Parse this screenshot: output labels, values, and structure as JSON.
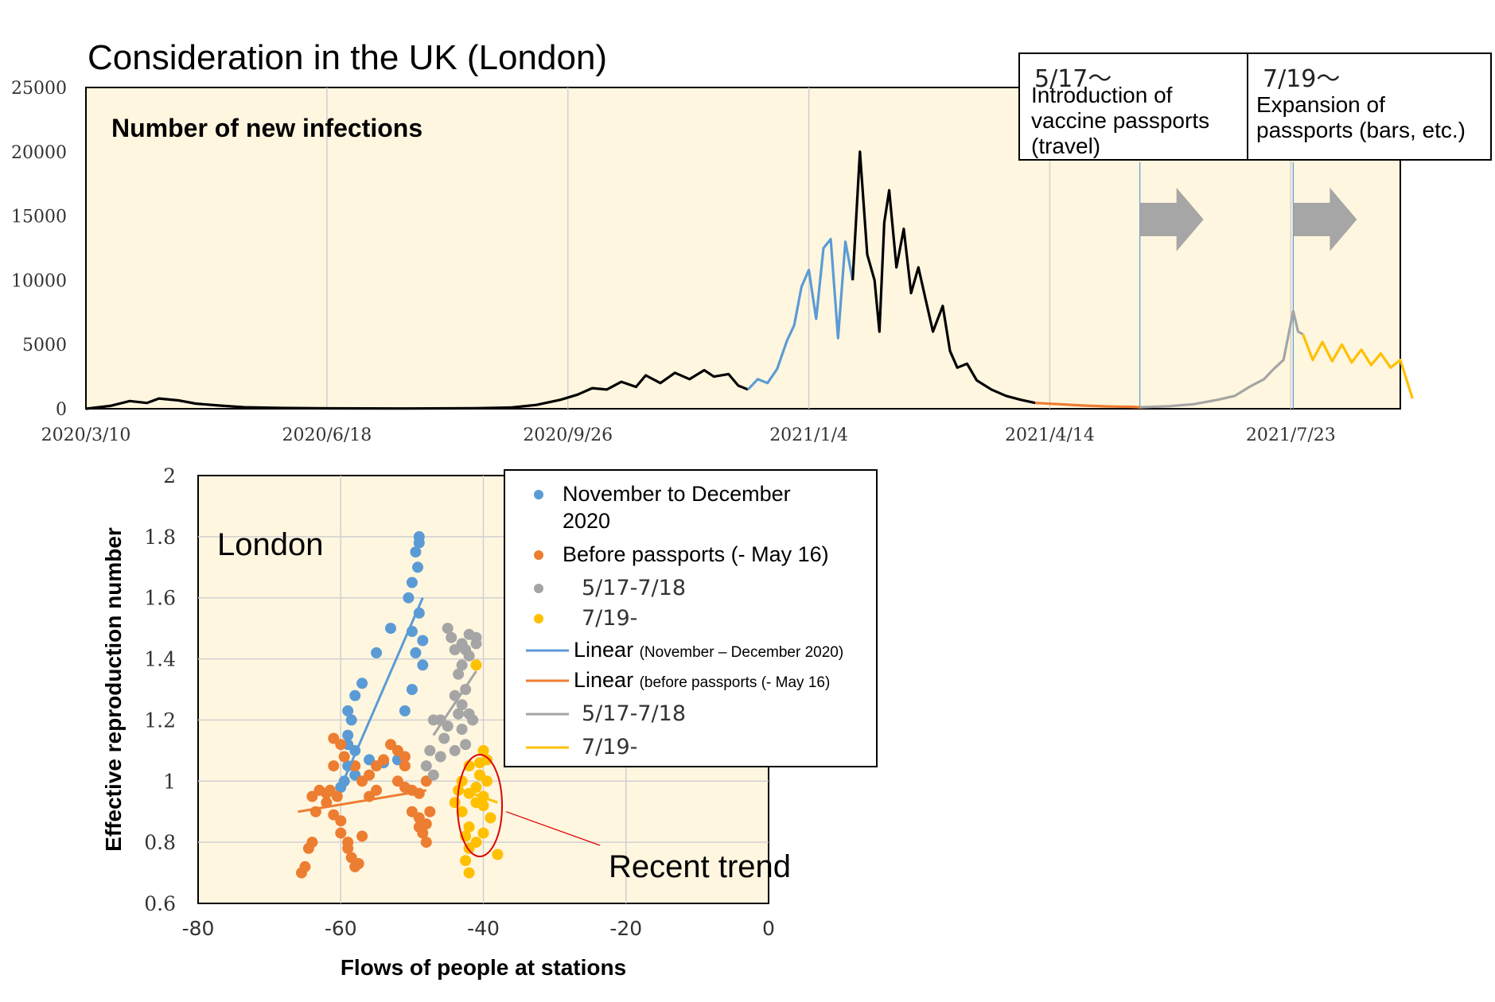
{
  "title": "Consideration in the UK (London)",
  "annotations": [
    {
      "date": "5/17〜",
      "text": [
        "Introduction of",
        "vaccine passports",
        "(travel)"
      ]
    },
    {
      "date": "7/19〜",
      "text": [
        "Expansion of",
        "passports (bars, etc.)"
      ]
    }
  ],
  "recent_trend_label": "Recent trend",
  "legend": {
    "items": [
      {
        "label": "November to December",
        "label2": "2020",
        "color": "#5b9bd5",
        "kind": "dot"
      },
      {
        "label": "Before passports (- May 16)",
        "color": "#ed7d31",
        "kind": "dot"
      },
      {
        "label": "5/17-7/18",
        "color": "#a5a5a5",
        "kind": "dot"
      },
      {
        "label": "7/19-",
        "color": "#ffc000",
        "kind": "dot"
      },
      {
        "label": "Linear",
        "small": "(November – December 2020)",
        "color": "#5b9bd5",
        "kind": "line"
      },
      {
        "label": "Linear",
        "small": "(before passports (- May 16)",
        "color": "#ed7d31",
        "kind": "line"
      },
      {
        "label": "5/17-7/18",
        "color": "#a5a5a5",
        "kind": "line"
      },
      {
        "label": "7/19-",
        "color": "#ffc000",
        "kind": "line"
      }
    ]
  },
  "colors": {
    "plot_bg": "#fff6df",
    "grid": "#d0d0d0",
    "nov_dec": "#5b9bd5",
    "before": "#ed7d31",
    "mid": "#a5a5a5",
    "after": "#ffc000",
    "arrow": "#a6a6a6",
    "circle": "#e00000"
  },
  "chart_data": [
    {
      "type": "line",
      "title": "Number of new infections",
      "ylim": [
        0,
        25000
      ],
      "yticks": [
        0,
        5000,
        10000,
        15000,
        20000,
        25000
      ],
      "xticks": [
        "2020/3/10",
        "2020/6/18",
        "2020/9/26",
        "2021/1/4",
        "2021/4/14",
        "2021/7/23"
      ],
      "x_range_days": [
        0,
        540
      ],
      "event_days": [
        433,
        496
      ],
      "series": [
        {
          "color": "#000000",
          "points": [
            [
              0,
              0
            ],
            [
              10,
              220
            ],
            [
              18,
              600
            ],
            [
              25,
              450
            ],
            [
              30,
              800
            ],
            [
              38,
              650
            ],
            [
              45,
              400
            ],
            [
              55,
              250
            ],
            [
              65,
              120
            ],
            [
              80,
              60
            ],
            [
              100,
              30
            ],
            [
              130,
              20
            ],
            [
              160,
              40
            ],
            [
              175,
              100
            ],
            [
              185,
              300
            ],
            [
              195,
              700
            ],
            [
              202,
              1100
            ],
            [
              208,
              1600
            ],
            [
              214,
              1500
            ],
            [
              220,
              2100
            ],
            [
              226,
              1700
            ],
            [
              230,
              2600
            ],
            [
              236,
              2000
            ],
            [
              242,
              2800
            ],
            [
              248,
              2300
            ],
            [
              254,
              3000
            ],
            [
              258,
              2500
            ],
            [
              264,
              2700
            ],
            [
              268,
              1800
            ],
            [
              272,
              1500
            ]
          ]
        },
        {
          "color": "#5b9bd5",
          "points": [
            [
              272,
              1500
            ],
            [
              276,
              2300
            ],
            [
              280,
              2000
            ],
            [
              284,
              3100
            ],
            [
              288,
              5300
            ],
            [
              291,
              6500
            ],
            [
              294,
              9500
            ],
            [
              297,
              10800
            ],
            [
              300,
              7000
            ],
            [
              303,
              12500
            ],
            [
              306,
              13200
            ],
            [
              309,
              5500
            ],
            [
              312,
              13000
            ],
            [
              315,
              10000
            ]
          ]
        },
        {
          "color": "#000000",
          "points": [
            [
              315,
              10000
            ],
            [
              318,
              20000
            ],
            [
              321,
              12000
            ],
            [
              324,
              10000
            ],
            [
              326,
              6000
            ],
            [
              328,
              14500
            ],
            [
              330,
              17000
            ],
            [
              333,
              11000
            ],
            [
              336,
              14000
            ],
            [
              339,
              9000
            ],
            [
              342,
              11000
            ],
            [
              345,
              8500
            ],
            [
              348,
              6000
            ],
            [
              352,
              8000
            ],
            [
              355,
              4500
            ],
            [
              358,
              3200
            ],
            [
              362,
              3500
            ],
            [
              366,
              2200
            ],
            [
              372,
              1500
            ],
            [
              378,
              1000
            ],
            [
              384,
              700
            ],
            [
              390,
              450
            ]
          ]
        },
        {
          "color": "#ed7d31",
          "points": [
            [
              390,
              450
            ],
            [
              400,
              350
            ],
            [
              410,
              250
            ],
            [
              420,
              180
            ],
            [
              430,
              150
            ],
            [
              433,
              120
            ]
          ]
        },
        {
          "color": "#a5a5a5",
          "points": [
            [
              433,
              120
            ],
            [
              445,
              200
            ],
            [
              455,
              350
            ],
            [
              465,
              700
            ],
            [
              472,
              1000
            ],
            [
              478,
              1700
            ],
            [
              484,
              2300
            ],
            [
              488,
              3100
            ],
            [
              492,
              3800
            ],
            [
              496,
              7600
            ],
            [
              498,
              6000
            ],
            [
              500,
              5800
            ]
          ]
        },
        {
          "color": "#ffc000",
          "points": [
            [
              500,
              5800
            ],
            [
              504,
              3800
            ],
            [
              508,
              5200
            ],
            [
              512,
              3700
            ],
            [
              516,
              5000
            ],
            [
              520,
              3600
            ],
            [
              524,
              4600
            ],
            [
              528,
              3400
            ],
            [
              532,
              4300
            ],
            [
              536,
              3200
            ],
            [
              540,
              3800
            ],
            [
              545,
              800
            ]
          ]
        }
      ]
    },
    {
      "type": "scatter",
      "xlabel": "Flows of people at stations",
      "ylabel": "Effective reproduction number",
      "xlim": [
        -80,
        0
      ],
      "ylim": [
        0.6,
        2
      ],
      "xticks": [
        -80,
        -60,
        -40,
        -20,
        0
      ],
      "yticks": [
        0.6,
        0.8,
        1,
        1.2,
        1.4,
        1.6,
        1.8,
        2
      ],
      "plot_labels": {
        "region": "London"
      },
      "series": [
        {
          "name": "November to December 2020",
          "color": "#5b9bd5",
          "points": [
            [
              -59,
              1.23
            ],
            [
              -58.5,
              1.2
            ],
            [
              -59,
              1.15
            ],
            [
              -58,
              1.28
            ],
            [
              -57,
              1.32
            ],
            [
              -55,
              1.42
            ],
            [
              -53,
              1.5
            ],
            [
              -50.5,
              1.6
            ],
            [
              -50,
              1.65
            ],
            [
              -49.5,
              1.75
            ],
            [
              -49,
              1.78
            ],
            [
              -49,
              1.8
            ],
            [
              -49.2,
              1.7
            ],
            [
              -49,
              1.55
            ],
            [
              -48.5,
              1.46
            ],
            [
              -48.5,
              1.38
            ],
            [
              -50,
              1.3
            ],
            [
              -51,
              1.23
            ],
            [
              -52,
              1.07
            ],
            [
              -54,
              1.06
            ],
            [
              -56,
              1.07
            ],
            [
              -58,
              1.02
            ],
            [
              -59,
              1.05
            ],
            [
              -59.5,
              1.0
            ],
            [
              -60,
              0.98
            ],
            [
              -59,
              1.12
            ],
            [
              -58,
              1.1
            ],
            [
              -49.5,
              1.42
            ],
            [
              -50,
              1.49
            ]
          ]
        },
        {
          "name": "Before passports (- May 16)",
          "color": "#ed7d31",
          "points": [
            [
              -65,
              0.72
            ],
            [
              -65.5,
              0.7
            ],
            [
              -64,
              0.8
            ],
            [
              -64.5,
              0.78
            ],
            [
              -63.5,
              0.9
            ],
            [
              -64,
              0.95
            ],
            [
              -63,
              0.97
            ],
            [
              -62,
              0.96
            ],
            [
              -61,
              1.05
            ],
            [
              -60,
              1.12
            ],
            [
              -61,
              1.14
            ],
            [
              -59.5,
              1.08
            ],
            [
              -58,
              1.05
            ],
            [
              -57,
              1.0
            ],
            [
              -56,
              1.02
            ],
            [
              -55,
              1.05
            ],
            [
              -54,
              1.07
            ],
            [
              -53,
              1.12
            ],
            [
              -52,
              1.0
            ],
            [
              -51,
              0.98
            ],
            [
              -50,
              0.97
            ],
            [
              -49,
              0.96
            ],
            [
              -48,
              1.0
            ],
            [
              -47.5,
              0.9
            ],
            [
              -48,
              0.8
            ],
            [
              -49,
              0.85
            ],
            [
              -50,
              0.9
            ],
            [
              -51,
              1.05
            ],
            [
              -51,
              1.08
            ],
            [
              -52,
              1.1
            ],
            [
              -60,
              0.83
            ],
            [
              -59,
              0.8
            ],
            [
              -58.5,
              0.75
            ],
            [
              -58,
              0.72
            ],
            [
              -57.5,
              0.73
            ],
            [
              -59,
              0.78
            ],
            [
              -57,
              0.82
            ],
            [
              -60,
              0.87
            ],
            [
              -61,
              0.89
            ],
            [
              -60.5,
              0.95
            ],
            [
              -62,
              0.93
            ],
            [
              -61.5,
              0.97
            ],
            [
              -56,
              0.95
            ],
            [
              -55,
              0.97
            ],
            [
              -49,
              0.88
            ],
            [
              -48.5,
              0.83
            ],
            [
              -48,
              0.86
            ]
          ]
        },
        {
          "name": "5/17-7/18",
          "color": "#a5a5a5",
          "points": [
            [
              -45,
              1.5
            ],
            [
              -44.5,
              1.47
            ],
            [
              -44,
              1.43
            ],
            [
              -43,
              1.45
            ],
            [
              -42,
              1.48
            ],
            [
              -41,
              1.47
            ],
            [
              -43.5,
              1.35
            ],
            [
              -42.5,
              1.3
            ],
            [
              -43,
              1.25
            ],
            [
              -42,
              1.22
            ],
            [
              -41.5,
              1.2
            ],
            [
              -43,
              1.17
            ],
            [
              -42.5,
              1.12
            ],
            [
              -44,
              1.1
            ],
            [
              -45,
              1.18
            ],
            [
              -46,
              1.2
            ],
            [
              -47,
              1.2
            ],
            [
              -47.5,
              1.1
            ],
            [
              -48,
              1.05
            ],
            [
              -47,
              1.02
            ],
            [
              -46,
              1.08
            ],
            [
              -45.5,
              1.14
            ],
            [
              -44,
              1.28
            ],
            [
              -43,
              1.38
            ],
            [
              -42,
              1.41
            ],
            [
              -41,
              1.45
            ],
            [
              -42.5,
              1.43
            ],
            [
              -43.5,
              1.22
            ]
          ]
        },
        {
          "name": "7/19-",
          "color": "#ffc000",
          "points": [
            [
              -41,
              1.38
            ],
            [
              -40,
              1.1
            ],
            [
              -39.5,
              1.07
            ],
            [
              -40.5,
              1.02
            ],
            [
              -41,
              0.98
            ],
            [
              -42,
              1.05
            ],
            [
              -43,
              1.0
            ],
            [
              -43.5,
              0.97
            ],
            [
              -44,
              0.93
            ],
            [
              -43,
              0.9
            ],
            [
              -42,
              0.85
            ],
            [
              -42.5,
              0.82
            ],
            [
              -42,
              0.78
            ],
            [
              -42.5,
              0.74
            ],
            [
              -42,
              0.7
            ],
            [
              -41,
              0.8
            ],
            [
              -40,
              0.83
            ],
            [
              -39,
              0.88
            ],
            [
              -40,
              0.95
            ],
            [
              -39.5,
              1.0
            ],
            [
              -40.5,
              1.06
            ],
            [
              -38,
              0.76
            ],
            [
              -40,
              0.92
            ],
            [
              -41,
              0.93
            ],
            [
              -42,
              0.96
            ]
          ]
        }
      ],
      "fits": [
        {
          "name": "Linear (November – December 2020)",
          "color": "#5b9bd5",
          "from": [
            -60,
            0.98
          ],
          "to": [
            -48.5,
            1.6
          ]
        },
        {
          "name": "Linear (before passports (- May 16)",
          "color": "#ed7d31",
          "from": [
            -66,
            0.9
          ],
          "to": [
            -48,
            0.97
          ]
        },
        {
          "name": "5/17-7/18",
          "color": "#a5a5a5",
          "from": [
            -47,
            1.15
          ],
          "to": [
            -41,
            1.36
          ]
        },
        {
          "name": "7/19-",
          "color": "#ffc000",
          "from": [
            -44,
            0.98
          ],
          "to": [
            -38,
            0.93
          ]
        }
      ]
    }
  ]
}
